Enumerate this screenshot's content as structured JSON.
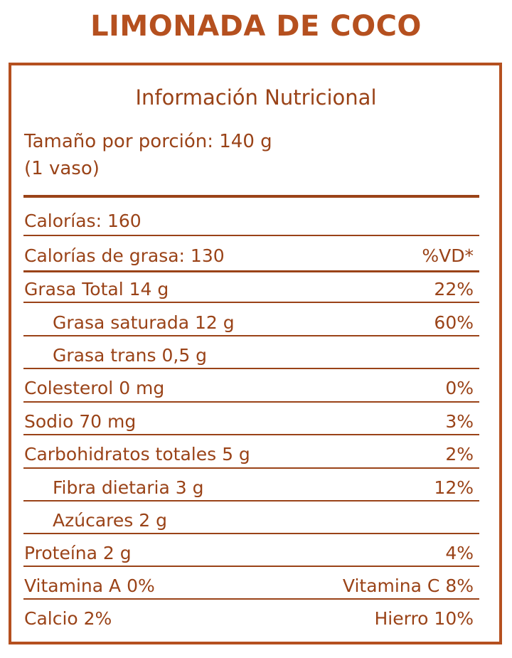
{
  "product_title": "LIMONADA DE COCO",
  "heading": "Información Nutricional",
  "serving": {
    "line1": "Tamaño por porción: 140 g",
    "line2": "(1 vaso)"
  },
  "rows": [
    {
      "left": "Calorías: 160",
      "right": ""
    },
    {
      "left": "Calorías de grasa: 130",
      "right": "%VD*"
    },
    {
      "left": "Grasa Total 14 g",
      "right": "22%"
    },
    {
      "left": "Grasa saturada 12 g",
      "right": "60%"
    },
    {
      "left": "Grasa trans 0,5 g",
      "right": ""
    },
    {
      "left": "Colesterol 0 mg",
      "right": "0%"
    },
    {
      "left": "Sodio 70 mg",
      "right": "3%"
    },
    {
      "left": "Carbohidratos totales 5 g",
      "right": "2%"
    },
    {
      "left": "Fibra dietaria 3 g",
      "right": "12%"
    },
    {
      "left": "Azúcares 2 g",
      "right": ""
    },
    {
      "left": "Proteína 2 g",
      "right": "4%"
    },
    {
      "left": "Vitamina A 0%",
      "right": "Vitamina C 8%"
    },
    {
      "left": "Calcio 2%",
      "right": "Hierro 10%"
    }
  ],
  "colors": {
    "accent": "#b5501f",
    "text": "#9a4318"
  }
}
